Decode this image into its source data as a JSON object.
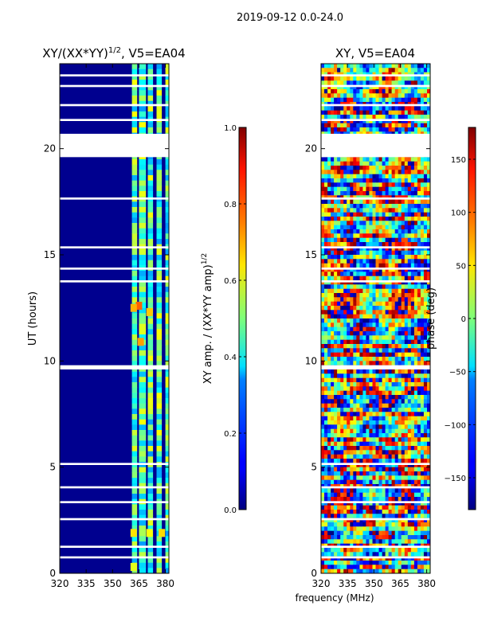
{
  "suptitle": "2019-09-12 0.0-24.0",
  "xlabel": "frequency (MHz)",
  "chart_data": [
    {
      "type": "heatmap",
      "title": "XY/(XX*YY)",
      "title_exp": "1/2",
      "title_suffix": ", V5=EA04",
      "ylabel": "UT (hours)",
      "xlim": [
        320,
        382
      ],
      "ylim": [
        0,
        24
      ],
      "xticks": [
        320,
        335,
        350,
        365,
        380
      ],
      "yticks": [
        0,
        5,
        10,
        15,
        20
      ],
      "colormap": "jet",
      "background": "#00008f",
      "band_value": 0.45,
      "band_columns": [
        [
          361,
          364
        ],
        [
          365,
          369
        ],
        [
          370,
          373
        ],
        [
          375,
          378
        ],
        [
          380,
          382
        ]
      ],
      "bright_patches": [
        {
          "x": 365,
          "y": 12.6,
          "value": 0.78
        },
        {
          "x": 362,
          "y": 12.5,
          "value": 0.7
        },
        {
          "x": 371,
          "y": 12.3,
          "value": 0.68
        },
        {
          "x": 366,
          "y": 10.9,
          "value": 0.72
        },
        {
          "x": 362,
          "y": 1.9,
          "value": 0.65
        },
        {
          "x": 371,
          "y": 1.9,
          "value": 0.62
        },
        {
          "x": 378,
          "y": 1.9,
          "value": 0.66
        },
        {
          "x": 362,
          "y": 0.3,
          "value": 0.6
        }
      ],
      "gaps_ut": [
        [
          19.6,
          20.7
        ],
        [
          9.6,
          9.8
        ],
        [
          15.3,
          15.4
        ],
        [
          13.7,
          13.8
        ],
        [
          14.3,
          14.4
        ],
        [
          17.6,
          17.7
        ],
        [
          21.3,
          21.4
        ],
        [
          22.0,
          22.1
        ],
        [
          22.9,
          23.0
        ],
        [
          23.4,
          23.5
        ],
        [
          5.1,
          5.2
        ],
        [
          4.0,
          4.1
        ],
        [
          3.3,
          3.4
        ],
        [
          2.5,
          2.6
        ],
        [
          1.2,
          1.3
        ],
        [
          0.7,
          0.8
        ]
      ]
    },
    {
      "type": "heatmap",
      "title": "XY, V5=EA04",
      "ylabel": "",
      "xlim": [
        320,
        382
      ],
      "ylim": [
        0,
        24
      ],
      "xticks": [
        320,
        335,
        350,
        365,
        380
      ],
      "yticks": [
        0,
        5,
        10,
        15,
        20
      ],
      "colormap": "jet",
      "gaps_ut": [
        [
          19.6,
          20.7
        ],
        [
          9.6,
          9.8
        ],
        [
          15.3,
          15.4
        ],
        [
          13.7,
          13.8
        ],
        [
          14.3,
          14.4
        ],
        [
          17.6,
          17.7
        ],
        [
          21.3,
          21.4
        ],
        [
          22.0,
          22.1
        ],
        [
          22.9,
          23.0
        ],
        [
          23.4,
          23.5
        ],
        [
          5.1,
          5.2
        ],
        [
          4.0,
          4.1
        ],
        [
          3.3,
          3.4
        ],
        [
          2.5,
          2.6
        ],
        [
          1.2,
          1.3
        ],
        [
          0.7,
          0.8
        ]
      ]
    }
  ],
  "colorbars": [
    {
      "label": "XY amp. / (XX*YY amp)",
      "label_exp": "1/2",
      "range": [
        0.0,
        1.0
      ],
      "ticks": [
        "0.0",
        "0.2",
        "0.4",
        "0.6",
        "0.8",
        "1.0"
      ],
      "tick_values": [
        0,
        0.2,
        0.4,
        0.6,
        0.8,
        1.0
      ]
    },
    {
      "label": "phase (deg)",
      "range": [
        -180,
        180
      ],
      "ticks": [
        "−150",
        "−100",
        "−50",
        "0",
        "50",
        "100",
        "150"
      ],
      "tick_values": [
        -150,
        -100,
        -50,
        0,
        50,
        100,
        150
      ]
    }
  ]
}
